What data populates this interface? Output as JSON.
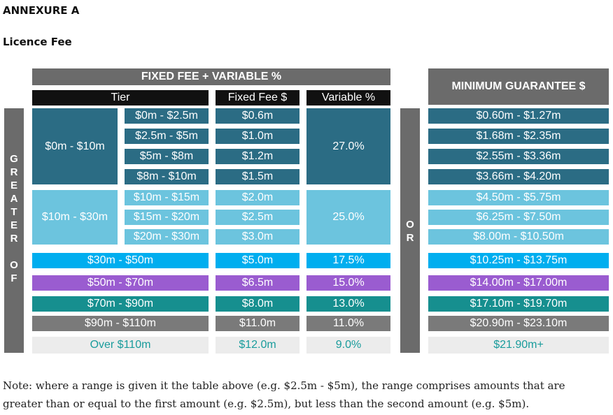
{
  "heading": "ANNEXURE A",
  "subheading": "Licence Fee",
  "fixed_variable_header": "FIXED FEE + VARIABLE %",
  "columns": {
    "tier": "Tier",
    "fixed": "Fixed Fee $",
    "variable": "Variable %"
  },
  "min_guarantee_header": "MINIMUM GUARANTEE $",
  "greater_of": "GREATER OF",
  "or_label": "OR",
  "colors": {
    "dark_teal": "#2b6c84",
    "light_blue": "#6cc4de",
    "bright_blue": "#00aeef",
    "purple": "#9a5cd0",
    "teal": "#168f8f",
    "grey": "#7a7a7a",
    "pale": "#ececec",
    "pale_text": "#1a9c9c"
  },
  "group1": {
    "range": "$0m - $10m",
    "variable": "27.0%",
    "rows": [
      {
        "sub": "$0m - $2.5m",
        "fixed": "$0.6m",
        "guarantee": "$0.60m - $1.27m"
      },
      {
        "sub": "$2.5m - $5m",
        "fixed": "$1.0m",
        "guarantee": "$1.68m - $2.35m"
      },
      {
        "sub": "$5m - $8m",
        "fixed": "$1.2m",
        "guarantee": "$2.55m - $3.36m"
      },
      {
        "sub": "$8m - $10m",
        "fixed": "$1.5m",
        "guarantee": "$3.66m - $4.20m"
      }
    ]
  },
  "group2": {
    "range": "$10m - $30m",
    "variable": "25.0%",
    "rows": [
      {
        "sub": "$10m - $15m",
        "fixed": "$2.0m",
        "guarantee": "$4.50m - $5.75m"
      },
      {
        "sub": "$15m - $20m",
        "fixed": "$2.5m",
        "guarantee": "$6.25m - $7.50m"
      },
      {
        "sub": "$20m - $30m",
        "fixed": "$3.0m",
        "guarantee": "$8.00m - $10.50m"
      }
    ]
  },
  "single_rows": [
    {
      "tier": "$30m - $50m",
      "fixed": "$5.0m",
      "variable": "17.5%",
      "guarantee": "$10.25m - $13.75m"
    },
    {
      "tier": "$50m - $70m",
      "fixed": "$6.5m",
      "variable": "15.0%",
      "guarantee": "$14.00m - $17.00m"
    },
    {
      "tier": "$70m - $90m",
      "fixed": "$8.0m",
      "variable": "13.0%",
      "guarantee": "$17.10m - $19.70m"
    },
    {
      "tier": "$90m - $110m",
      "fixed": "$11.0m",
      "variable": "11.0%",
      "guarantee": "$20.90m - $23.10m"
    },
    {
      "tier": "Over $110m",
      "fixed": "$12.0m",
      "variable": "9.0%",
      "guarantee": "$21.90m+"
    }
  ],
  "note_line1": "Note: where a range is given it the table above (e.g. $2.5m - $5m), the range comprises amounts that are",
  "note_line2": "greater than or equal to the first amount (e.g. $2.5m), but less than the second amount (e.g. $5m)."
}
